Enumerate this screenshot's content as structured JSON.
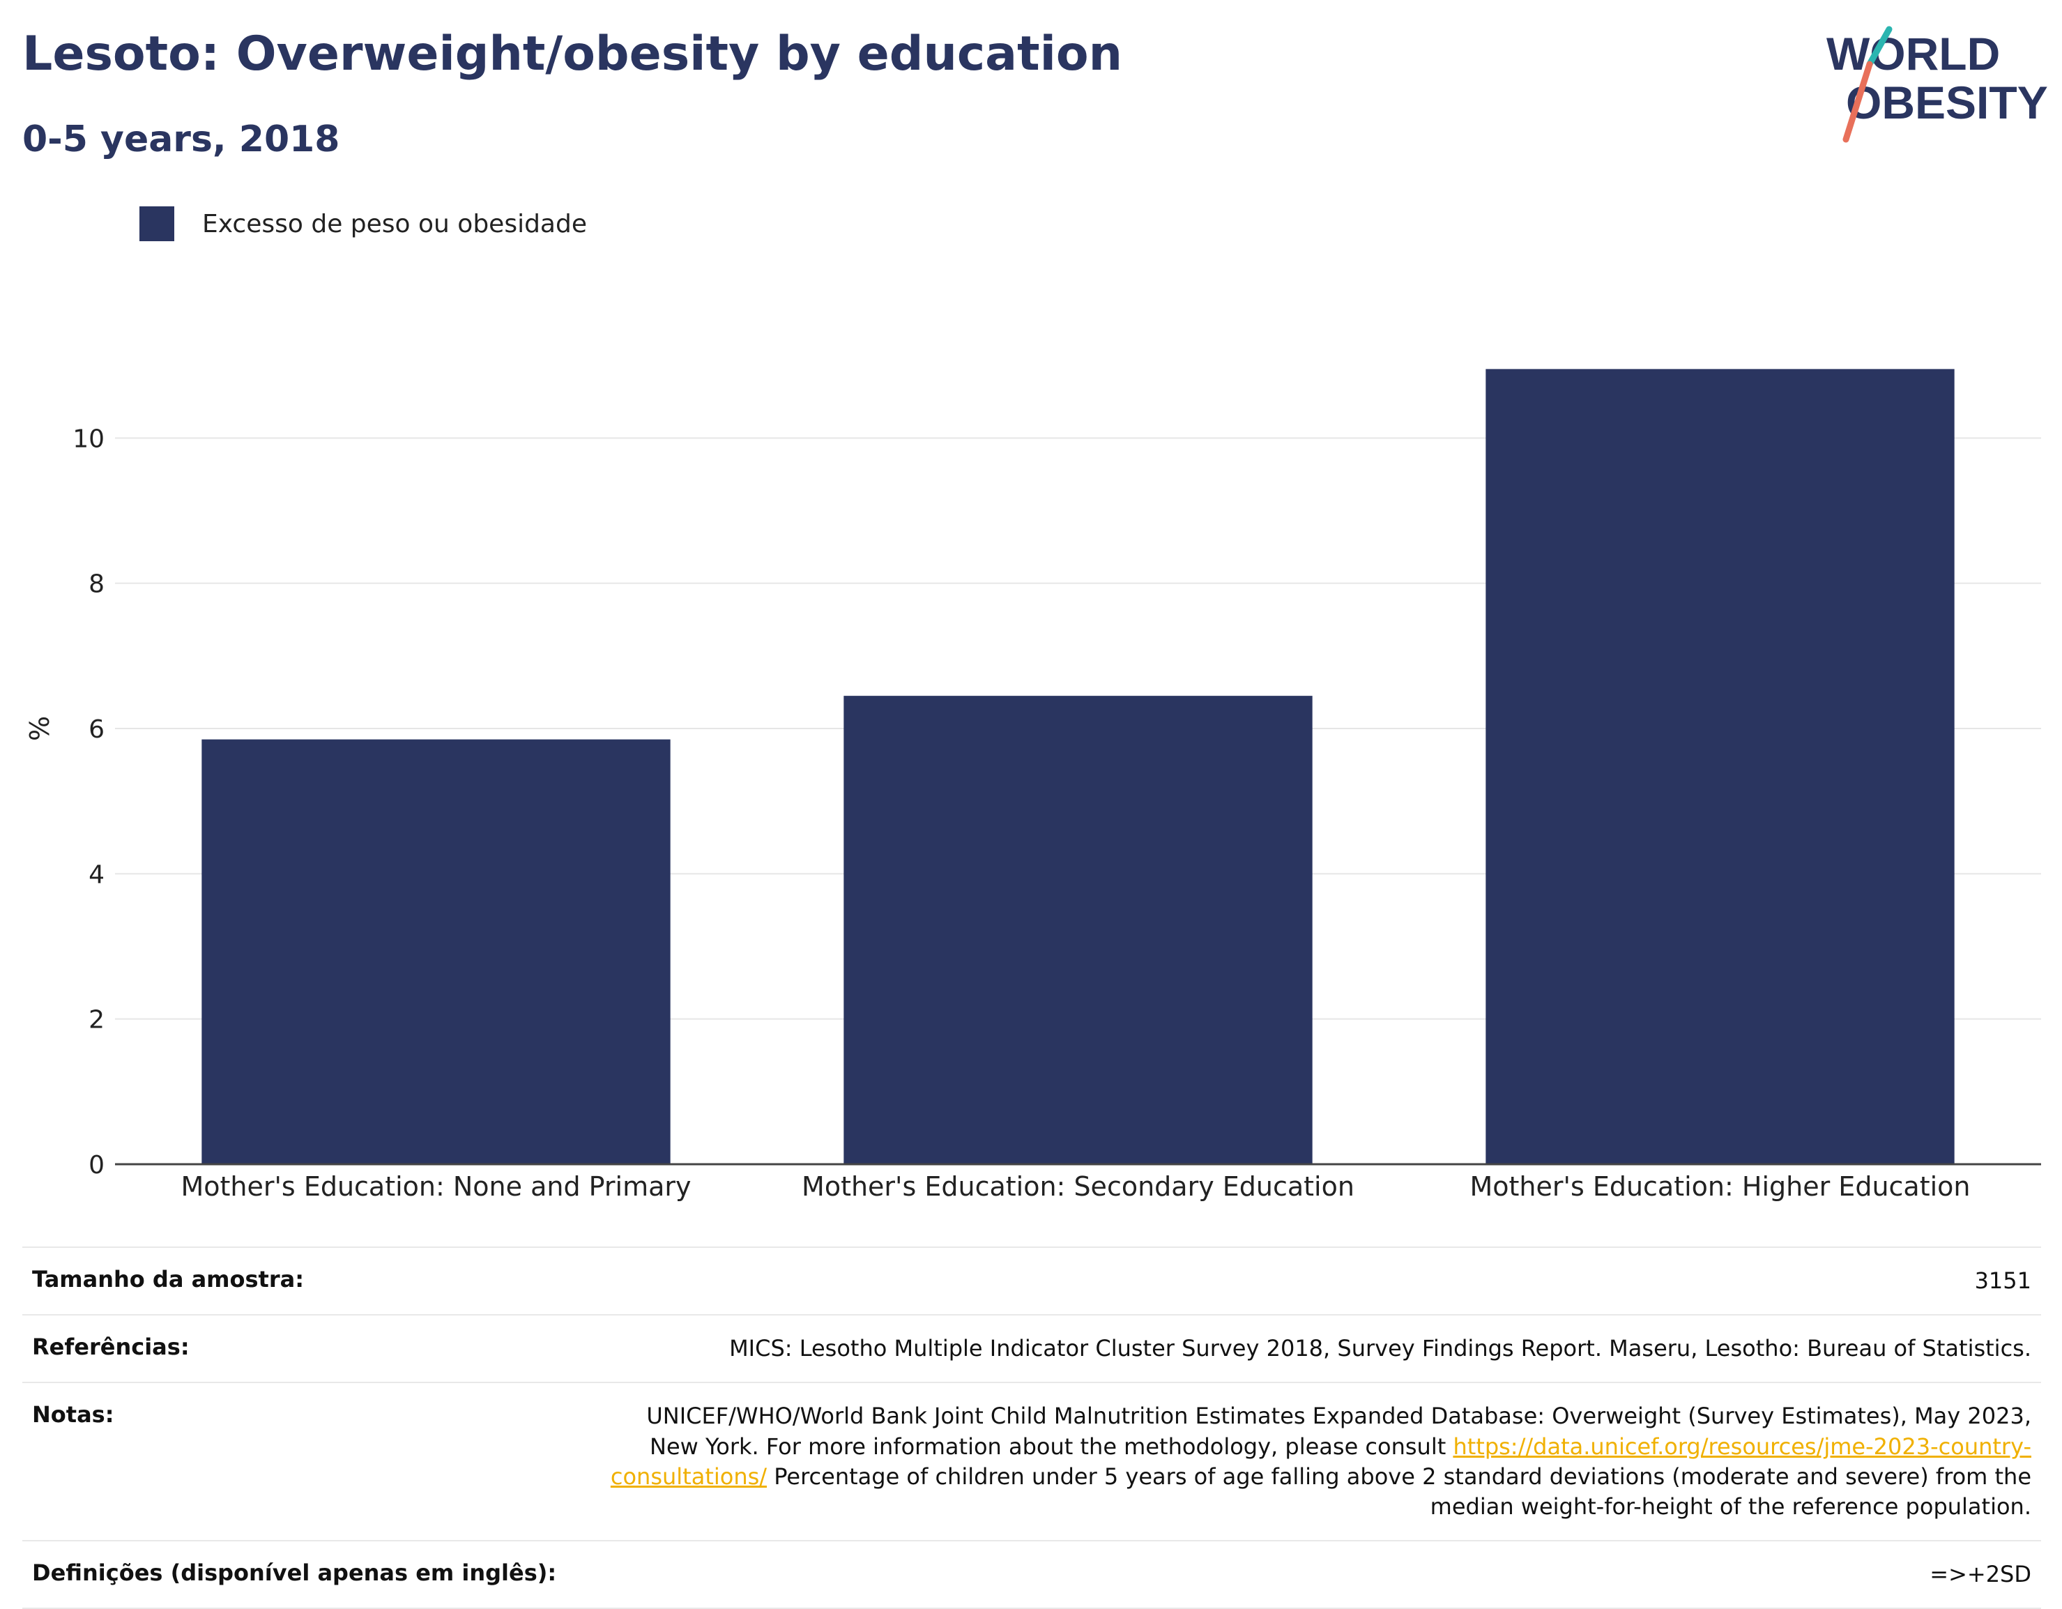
{
  "header": {
    "title": "Lesoto: Overweight/obesity by education",
    "subtitle": "0-5 years, 2018"
  },
  "logo": {
    "line1": "WORLD",
    "line2": "OBESITY"
  },
  "colors": {
    "bar": "#2a3560",
    "title": "#2a3560",
    "link": "#f0b000",
    "logo_slash_teal": "#2bb5b0",
    "logo_slash_coral": "#e8705a"
  },
  "chart_data": {
    "type": "bar",
    "categories": [
      "Mother's Education: None and Primary",
      "Mother's Education: Secondary Education",
      "Mother's Education: Higher Education"
    ],
    "series": [
      {
        "name": "Excesso de peso ou obesidade",
        "values": [
          5.85,
          6.45,
          10.95
        ]
      }
    ],
    "xlabel": "",
    "ylabel": "%",
    "ylim": [
      0,
      12
    ],
    "yticks": [
      0,
      2,
      4,
      6,
      8,
      10
    ],
    "grid": true,
    "legend_position": "top-left"
  },
  "info": {
    "rows": [
      {
        "label": "Tamanho da amostra:",
        "value": "3151"
      },
      {
        "label": "Referências:",
        "value": "MICS: Lesotho Multiple Indicator Cluster Survey 2018, Survey Findings Report. Maseru, Lesotho: Bureau of Statistics."
      },
      {
        "label": "Notas:",
        "value_pre": "UNICEF/WHO/World Bank Joint Child Malnutrition Estimates Expanded Database: Overweight (Survey Estimates), May 2023, New York. For more information about the methodology, please consult ",
        "link": "https://data.unicef.org/resources/jme-2023-country-consultations/",
        "value_post": " Percentage of children under 5 years of age falling above 2 standard deviations (moderate and severe) from the median weight-for-height of the reference population."
      },
      {
        "label": "Definições (disponível apenas em inglês):",
        "value": "=>+2SD"
      }
    ]
  }
}
